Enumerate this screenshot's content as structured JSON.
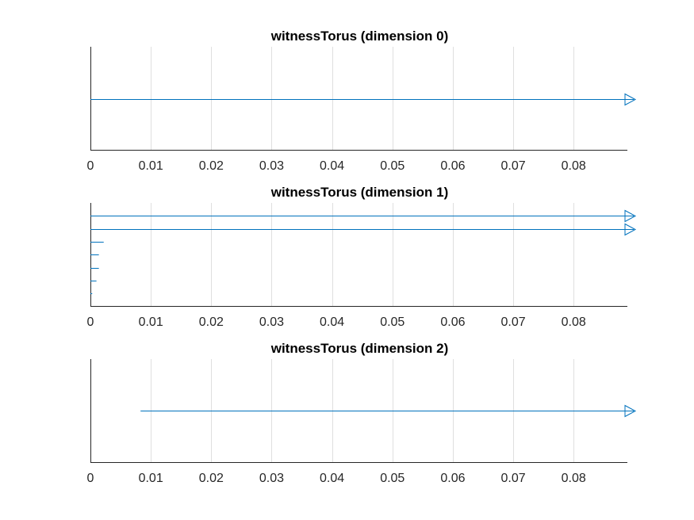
{
  "figure": {
    "background": "#ffffff"
  },
  "colors": {
    "bar": "#0072bd",
    "grid": "#dfdfdf",
    "axis": "#262626",
    "text": "#262626"
  },
  "chart_data": [
    {
      "type": "barcode",
      "title": "witnessTorus (dimension 0)",
      "xlim": [
        0,
        0.0889
      ],
      "x_ticks": [
        0,
        0.01,
        0.02,
        0.03,
        0.04,
        0.05,
        0.06,
        0.07,
        0.08
      ],
      "x_tick_labels": [
        "0",
        "0.01",
        "0.02",
        "0.03",
        "0.04",
        "0.05",
        "0.06",
        "0.07",
        "0.08"
      ],
      "grid": true,
      "bars": [
        {
          "birth": 0,
          "death": null,
          "infinite": true
        }
      ]
    },
    {
      "type": "barcode",
      "title": "witnessTorus (dimension 1)",
      "xlim": [
        0,
        0.0889
      ],
      "x_ticks": [
        0,
        0.01,
        0.02,
        0.03,
        0.04,
        0.05,
        0.06,
        0.07,
        0.08
      ],
      "x_tick_labels": [
        "0",
        "0.01",
        "0.02",
        "0.03",
        "0.04",
        "0.05",
        "0.06",
        "0.07",
        "0.08"
      ],
      "grid": true,
      "bars": [
        {
          "birth": 0,
          "death": null,
          "infinite": true
        },
        {
          "birth": 0,
          "death": null,
          "infinite": true
        },
        {
          "birth": 0,
          "death": 0.0022,
          "infinite": false
        },
        {
          "birth": 0,
          "death": 0.0014,
          "infinite": false
        },
        {
          "birth": 0,
          "death": 0.0014,
          "infinite": false
        },
        {
          "birth": 0,
          "death": 0.001,
          "infinite": false
        },
        {
          "birth": 0,
          "death": 0.0003,
          "infinite": false
        }
      ]
    },
    {
      "type": "barcode",
      "title": "witnessTorus (dimension 2)",
      "xlim": [
        0,
        0.0889
      ],
      "x_ticks": [
        0,
        0.01,
        0.02,
        0.03,
        0.04,
        0.05,
        0.06,
        0.07,
        0.08
      ],
      "x_tick_labels": [
        "0",
        "0.01",
        "0.02",
        "0.03",
        "0.04",
        "0.05",
        "0.06",
        "0.07",
        "0.08"
      ],
      "grid": true,
      "bars": [
        {
          "birth": 0.0083,
          "death": null,
          "infinite": true
        }
      ]
    }
  ]
}
